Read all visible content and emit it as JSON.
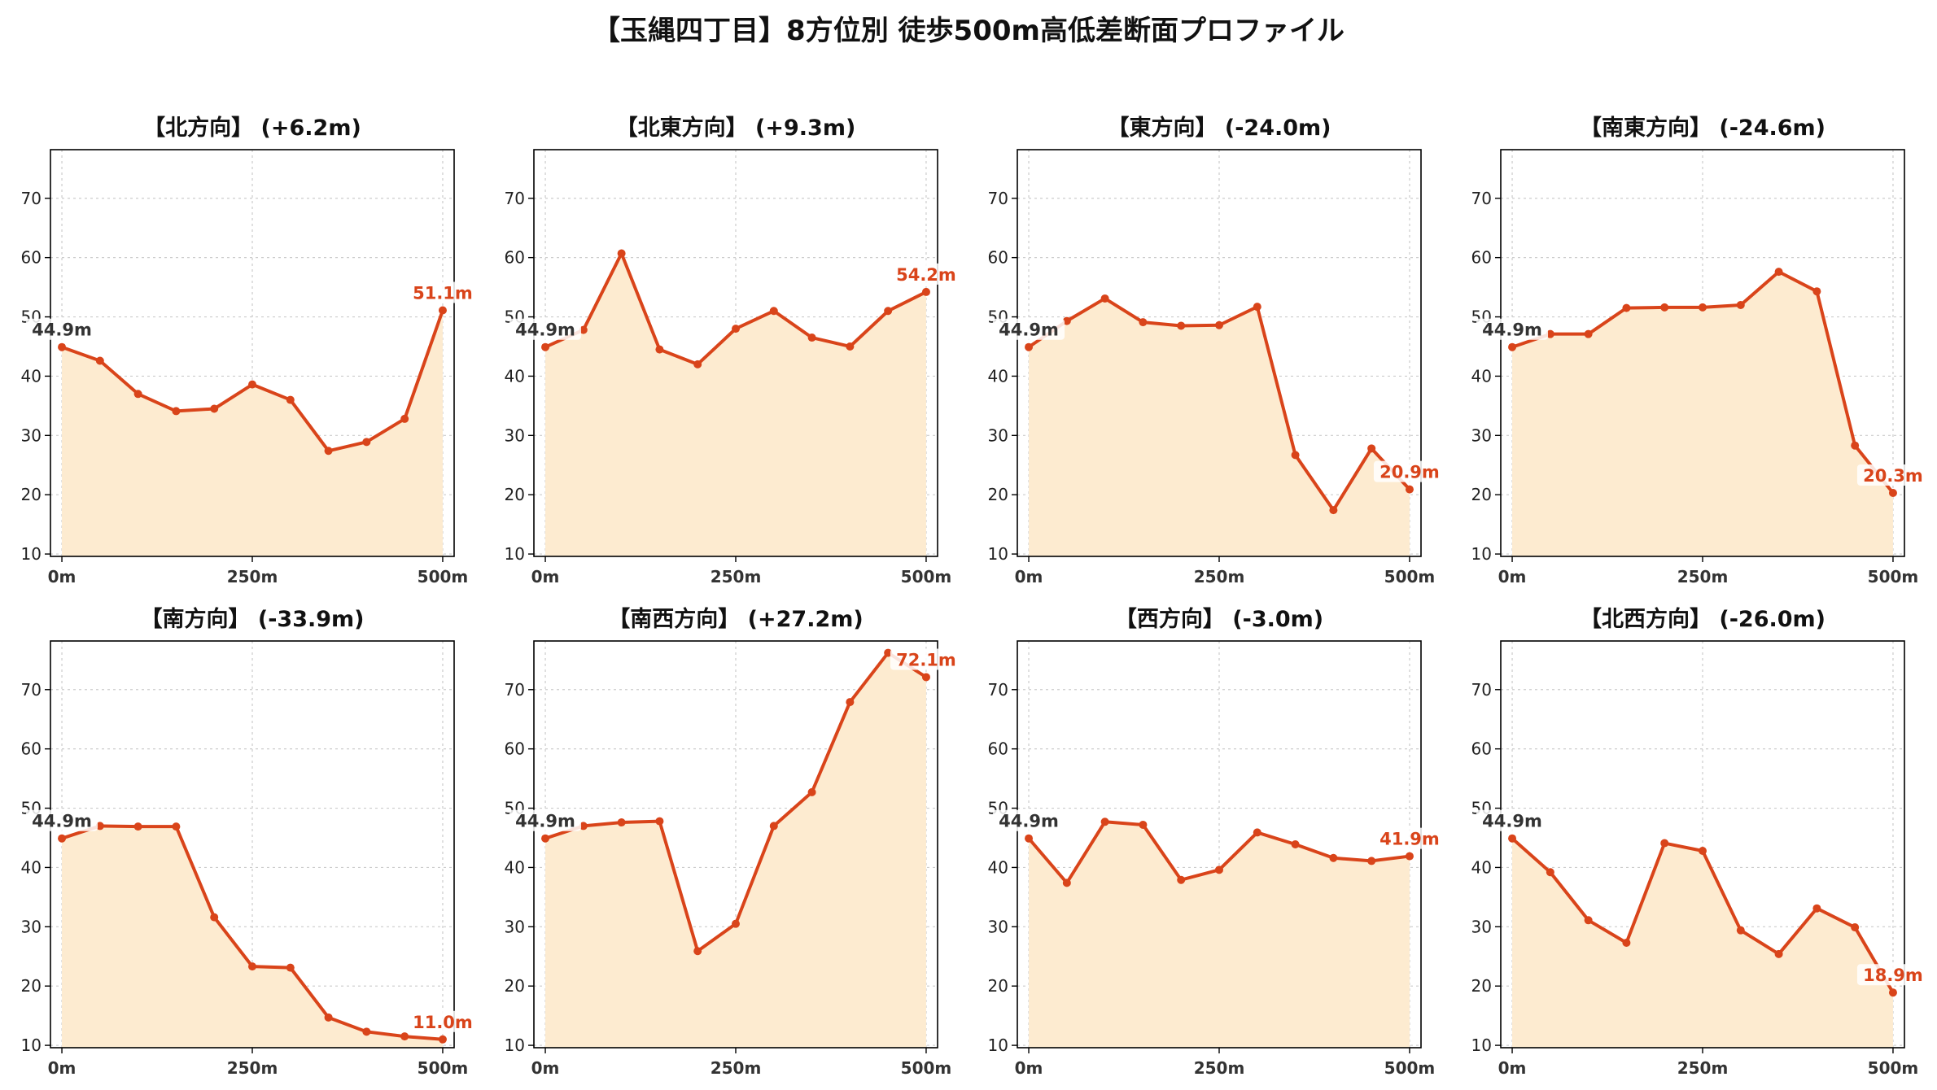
{
  "title": "【玉縄四丁目】8方位別 徒歩500m高低差断面プロファイル",
  "colors": {
    "line": "#d9441a",
    "fill": "#fdebd0",
    "start_label": "#333333",
    "end_label": "#d9441a",
    "grid": "#cccccc",
    "axis": "#000000"
  },
  "chart_data": [
    {
      "type": "area",
      "title": "【北方向】 (+6.2m)",
      "x": [
        0,
        50,
        100,
        150,
        200,
        250,
        300,
        350,
        400,
        450,
        500
      ],
      "values": [
        44.9,
        42.6,
        37.0,
        34.1,
        34.5,
        38.6,
        36.0,
        27.4,
        28.9,
        32.8,
        51.1
      ],
      "xticks": [
        "0m",
        "250m",
        "500m"
      ],
      "yticks": [
        "10",
        "20",
        "30",
        "40",
        "50",
        "60",
        "70"
      ],
      "ylim": [
        9.6,
        78.2
      ],
      "xlim": [
        -15,
        515
      ],
      "grid": true,
      "start_label": "44.9m",
      "end_label": "51.1m"
    },
    {
      "type": "area",
      "title": "【北東方向】 (+9.3m)",
      "x": [
        0,
        50,
        100,
        150,
        200,
        250,
        300,
        350,
        400,
        450,
        500
      ],
      "values": [
        44.9,
        47.8,
        60.7,
        44.5,
        42.0,
        48.0,
        51.0,
        46.5,
        45.0,
        51.0,
        54.2
      ],
      "xticks": [
        "0m",
        "250m",
        "500m"
      ],
      "yticks": [
        "10",
        "20",
        "30",
        "40",
        "50",
        "60",
        "70"
      ],
      "ylim": [
        9.6,
        78.2
      ],
      "xlim": [
        -15,
        515
      ],
      "grid": true,
      "start_label": "44.9m",
      "end_label": "54.2m"
    },
    {
      "type": "area",
      "title": "【東方向】 (-24.0m)",
      "x": [
        0,
        50,
        100,
        150,
        200,
        250,
        300,
        350,
        400,
        450,
        500
      ],
      "values": [
        44.9,
        49.3,
        53.1,
        49.1,
        48.5,
        48.6,
        51.7,
        26.7,
        17.4,
        27.8,
        20.9
      ],
      "xticks": [
        "0m",
        "250m",
        "500m"
      ],
      "yticks": [
        "10",
        "20",
        "30",
        "40",
        "50",
        "60",
        "70"
      ],
      "ylim": [
        9.6,
        78.2
      ],
      "xlim": [
        -15,
        515
      ],
      "grid": true,
      "start_label": "44.9m",
      "end_label": "20.9m"
    },
    {
      "type": "area",
      "title": "【南東方向】 (-24.6m)",
      "x": [
        0,
        50,
        100,
        150,
        200,
        250,
        300,
        350,
        400,
        450,
        500
      ],
      "values": [
        44.9,
        47.1,
        47.1,
        51.5,
        51.6,
        51.6,
        52.0,
        57.6,
        54.3,
        28.3,
        20.3
      ],
      "xticks": [
        "0m",
        "250m",
        "500m"
      ],
      "yticks": [
        "10",
        "20",
        "30",
        "40",
        "50",
        "60",
        "70"
      ],
      "ylim": [
        9.6,
        78.2
      ],
      "xlim": [
        -15,
        515
      ],
      "grid": true,
      "start_label": "44.9m",
      "end_label": "20.3m"
    },
    {
      "type": "area",
      "title": "【南方向】 (-33.9m)",
      "x": [
        0,
        50,
        100,
        150,
        200,
        250,
        300,
        350,
        400,
        450,
        500
      ],
      "values": [
        44.9,
        47.0,
        46.9,
        46.9,
        31.6,
        23.3,
        23.1,
        14.7,
        12.3,
        11.5,
        11.0
      ],
      "xticks": [
        "0m",
        "250m",
        "500m"
      ],
      "yticks": [
        "10",
        "20",
        "30",
        "40",
        "50",
        "60",
        "70"
      ],
      "ylim": [
        9.6,
        78.2
      ],
      "xlim": [
        -15,
        515
      ],
      "grid": true,
      "start_label": "44.9m",
      "end_label": "11.0m"
    },
    {
      "type": "area",
      "title": "【南西方向】 (+27.2m)",
      "x": [
        0,
        50,
        100,
        150,
        200,
        250,
        300,
        350,
        400,
        450,
        500
      ],
      "values": [
        44.9,
        47.0,
        47.6,
        47.8,
        25.9,
        30.5,
        47.0,
        52.7,
        67.9,
        76.2,
        72.1
      ],
      "xticks": [
        "0m",
        "250m",
        "500m"
      ],
      "yticks": [
        "10",
        "20",
        "30",
        "40",
        "50",
        "60",
        "70"
      ],
      "ylim": [
        9.6,
        78.2
      ],
      "xlim": [
        -15,
        515
      ],
      "grid": true,
      "start_label": "44.9m",
      "end_label": "72.1m"
    },
    {
      "type": "area",
      "title": "【西方向】 (-3.0m)",
      "x": [
        0,
        50,
        100,
        150,
        200,
        250,
        300,
        350,
        400,
        450,
        500
      ],
      "values": [
        44.9,
        37.4,
        47.7,
        47.2,
        37.9,
        39.6,
        45.9,
        43.9,
        41.6,
        41.1,
        41.9
      ],
      "xticks": [
        "0m",
        "250m",
        "500m"
      ],
      "yticks": [
        "10",
        "20",
        "30",
        "40",
        "50",
        "60",
        "70"
      ],
      "ylim": [
        9.6,
        78.2
      ],
      "xlim": [
        -15,
        515
      ],
      "grid": true,
      "start_label": "44.9m",
      "end_label": "41.9m"
    },
    {
      "type": "area",
      "title": "【北西方向】 (-26.0m)",
      "x": [
        0,
        50,
        100,
        150,
        200,
        250,
        300,
        350,
        400,
        450,
        500
      ],
      "values": [
        44.9,
        39.2,
        31.1,
        27.3,
        44.1,
        42.8,
        29.4,
        25.4,
        33.1,
        29.9,
        18.9
      ],
      "xticks": [
        "0m",
        "250m",
        "500m"
      ],
      "yticks": [
        "10",
        "20",
        "30",
        "40",
        "50",
        "60",
        "70"
      ],
      "ylim": [
        9.6,
        78.2
      ],
      "xlim": [
        -15,
        515
      ],
      "grid": true,
      "start_label": "44.9m",
      "end_label": "18.9m"
    }
  ]
}
